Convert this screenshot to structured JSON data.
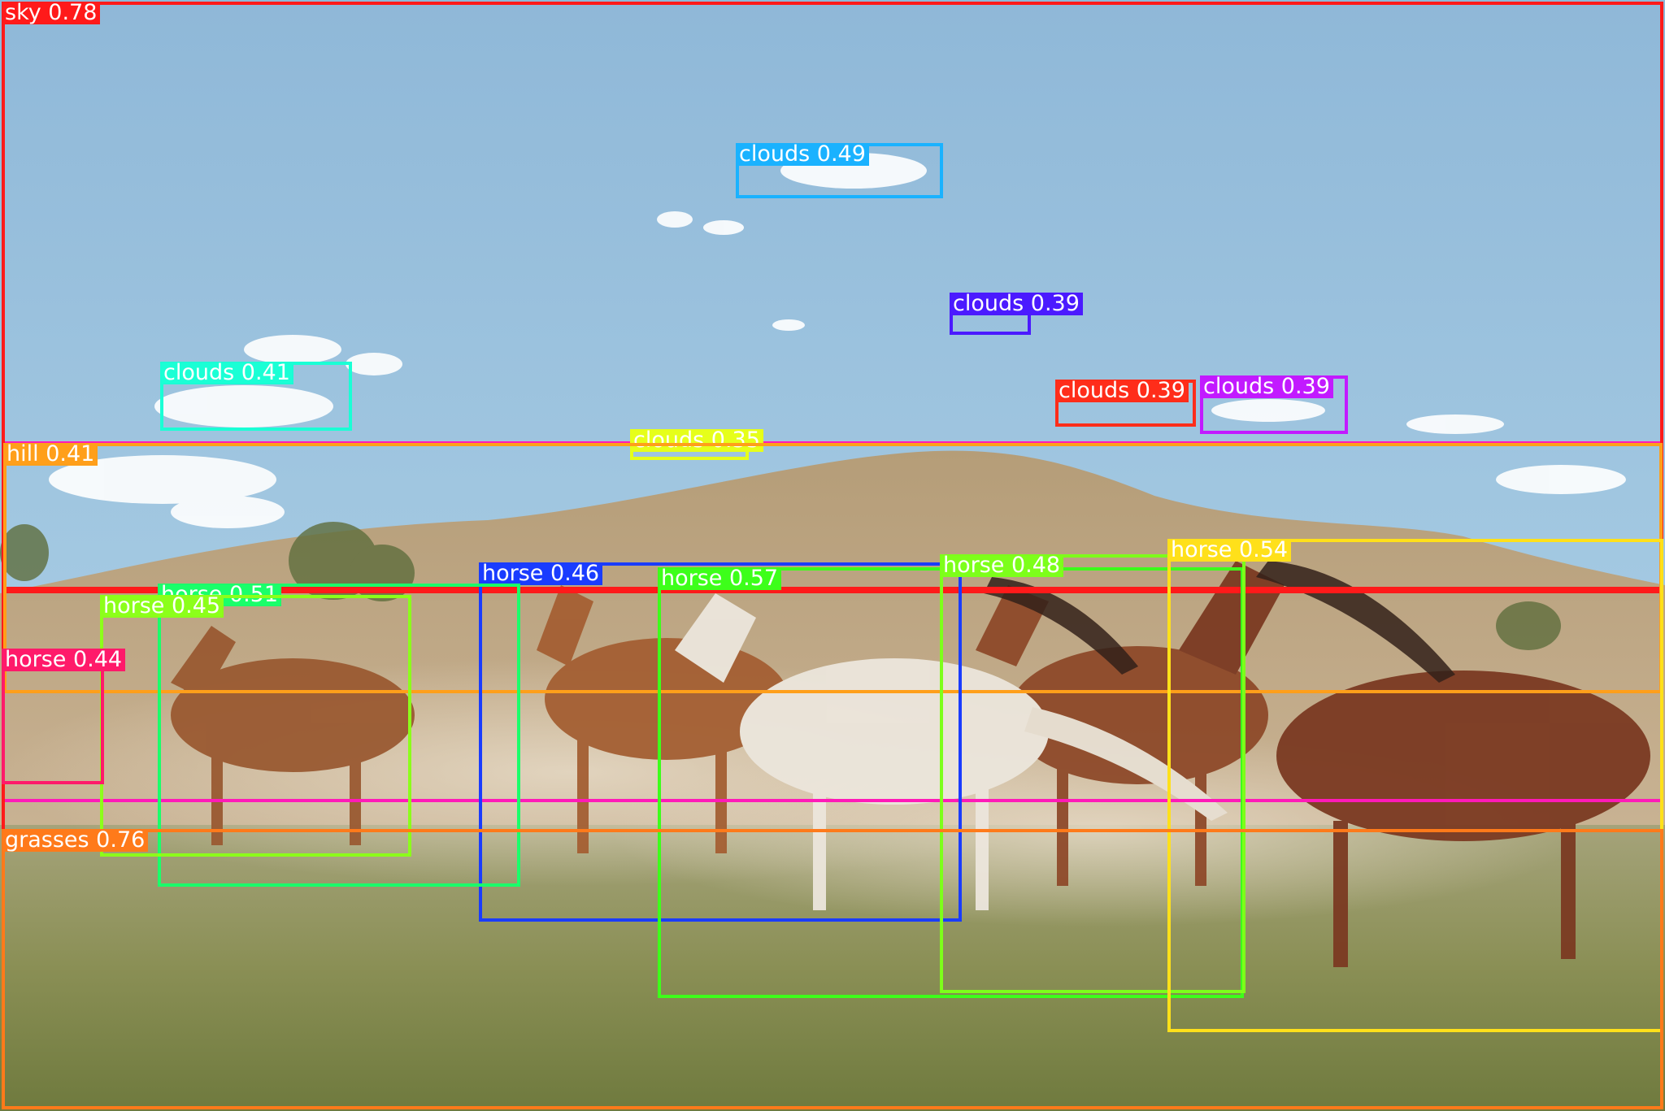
{
  "image": {
    "alt": "Herd of horses running across a grassy field below a hill under a blue sky, with object detection boxes"
  },
  "detections": [
    {
      "label": "sky",
      "score": "0.78",
      "color": "#ff1a1a"
    },
    {
      "label": "clouds",
      "score": "0.49",
      "color": "#1ab2ff"
    },
    {
      "label": "clouds",
      "score": "0.39",
      "color": "#4b1aff"
    },
    {
      "label": "clouds",
      "score": "0.41",
      "color": "#1affd5"
    },
    {
      "label": "clouds",
      "score": "0.39",
      "color": "#ff2d1a"
    },
    {
      "label": "clouds",
      "score": "0.39",
      "color": "#c21aff"
    },
    {
      "label": "clouds",
      "score": "0.35",
      "color": "#e6ff1a"
    },
    {
      "label": "hill",
      "score": "0.41",
      "color": "#ff9f1a"
    },
    {
      "label": "horse",
      "score": "0.46",
      "color": "#1a3cff"
    },
    {
      "label": "horse",
      "score": "0.57",
      "color": "#3dff1a"
    },
    {
      "label": "horse",
      "score": "0.48",
      "color": "#7dff1a"
    },
    {
      "label": "horse",
      "score": "0.54",
      "color": "#ffe01a"
    },
    {
      "label": "horse",
      "score": "0.51",
      "color": "#1aff6a"
    },
    {
      "label": "horse",
      "score": "0.45",
      "color": "#8cff1a"
    },
    {
      "label": "horse",
      "score": "0.44",
      "color": "#ff1a6a"
    },
    {
      "label": "grasses",
      "score": "0.76",
      "color": "#ff7a1a"
    }
  ],
  "extra_frames": [
    {
      "color": "#ff1ab8"
    },
    {
      "color": "#ff1a1a"
    }
  ]
}
